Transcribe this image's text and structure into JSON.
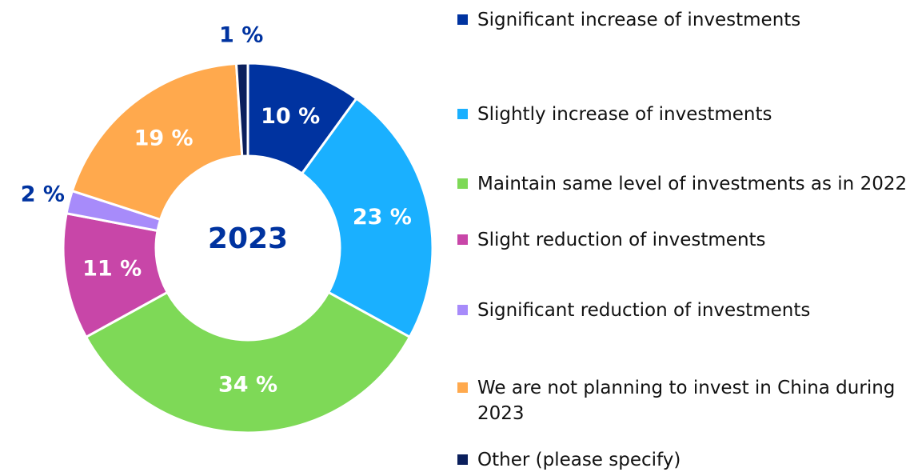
{
  "chart_data": {
    "type": "donut",
    "center_label": "2023",
    "categories": [
      "Significant increase of investments",
      "Slightly increase of investments",
      "Maintain same level of investments as in 2022",
      "Slight reduction of investments",
      "Significant reduction of investments",
      "We are not planning to invest in China during 2023",
      "Other (please specify)"
    ],
    "values": [
      10,
      23,
      34,
      11,
      2,
      19,
      1
    ],
    "value_labels": [
      "10 %",
      "23 %",
      "34 %",
      "11 %",
      "2 %",
      "19 %",
      "1 %"
    ],
    "colors": [
      "#0033a0",
      "#1ab0ff",
      "#7ed957",
      "#c846a8",
      "#a78bfa",
      "#ffa94d",
      "#0a1f5c"
    ],
    "legend": "right"
  }
}
